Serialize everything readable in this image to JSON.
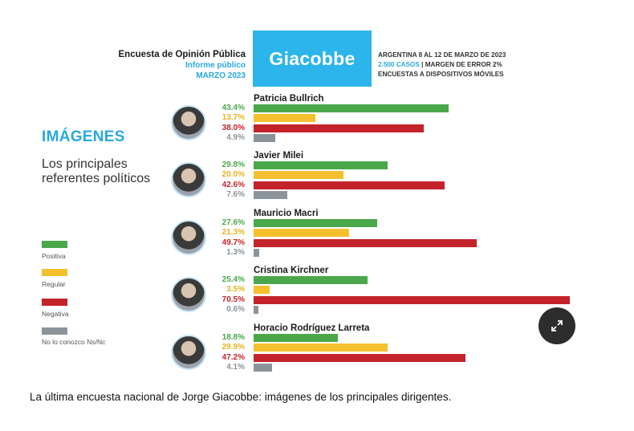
{
  "header": {
    "survey": "Encuesta de Opinión Pública",
    "report": "Informe público",
    "date": "MARZO 2023",
    "brand": "Giacobbe",
    "place_dates": "ARGENTINA 8 AL 12 DE MARZO DE 2023",
    "cases": "2.500 CASOS",
    "margin": " | MARGEN DE ERROR 2%",
    "method": "ENCUESTAS A DISPOSITIVOS MÓVILES"
  },
  "title": "IMÁGENES",
  "subtitle": "Los principales referentes políticos",
  "legend": [
    {
      "label": "Positiva",
      "color": "#4aa84b"
    },
    {
      "label": "Regular",
      "color": "#f5c02e"
    },
    {
      "label": "Negativa",
      "color": "#c4232b"
    },
    {
      "label": "No lo conozco Ns/Nc",
      "color": "#8c949b"
    }
  ],
  "chart_data": {
    "type": "bar",
    "series": [
      "Positiva",
      "Regular",
      "Negativa",
      "No lo conozco Ns/Nc"
    ],
    "colors": [
      "#4aa84b",
      "#f5c02e",
      "#c4232b",
      "#8c949b"
    ],
    "label_colors": [
      "#4aa84b",
      "#e8b320",
      "#c4232b",
      "#8c949b"
    ],
    "categories": [
      {
        "name": "Patricia Bullrich",
        "values": [
          43.4,
          13.7,
          38.0,
          4.9
        ],
        "labels": [
          "43.4%",
          "13.7%",
          "38.0%",
          "4.9%"
        ]
      },
      {
        "name": "Javier Milei",
        "values": [
          29.8,
          20.0,
          42.6,
          7.6
        ],
        "labels": [
          "29.8%",
          "20.0%",
          "42.6%",
          "7.6%"
        ]
      },
      {
        "name": "Mauricio Macri",
        "values": [
          27.6,
          21.3,
          49.7,
          1.3
        ],
        "labels": [
          "27.6%",
          "21.3%",
          "49.7%",
          "1.3%"
        ]
      },
      {
        "name": "Cristina Kirchner",
        "values": [
          25.4,
          3.5,
          70.5,
          0.6
        ],
        "labels": [
          "25.4%",
          "3.5%",
          "70.5%",
          "0.6%"
        ]
      },
      {
        "name": "Horacio Rodríguez Larreta",
        "values": [
          18.8,
          29.9,
          47.2,
          4.1
        ],
        "labels": [
          "18.8%",
          "29.9%",
          "47.2%",
          "4.1%"
        ]
      }
    ]
  },
  "caption": "La última encuesta nacional de Jorge Giacobbe: imágenes de los principales dirigentes.",
  "icons": {
    "expand": "expand-icon",
    "avatar": "candidate-photo"
  }
}
